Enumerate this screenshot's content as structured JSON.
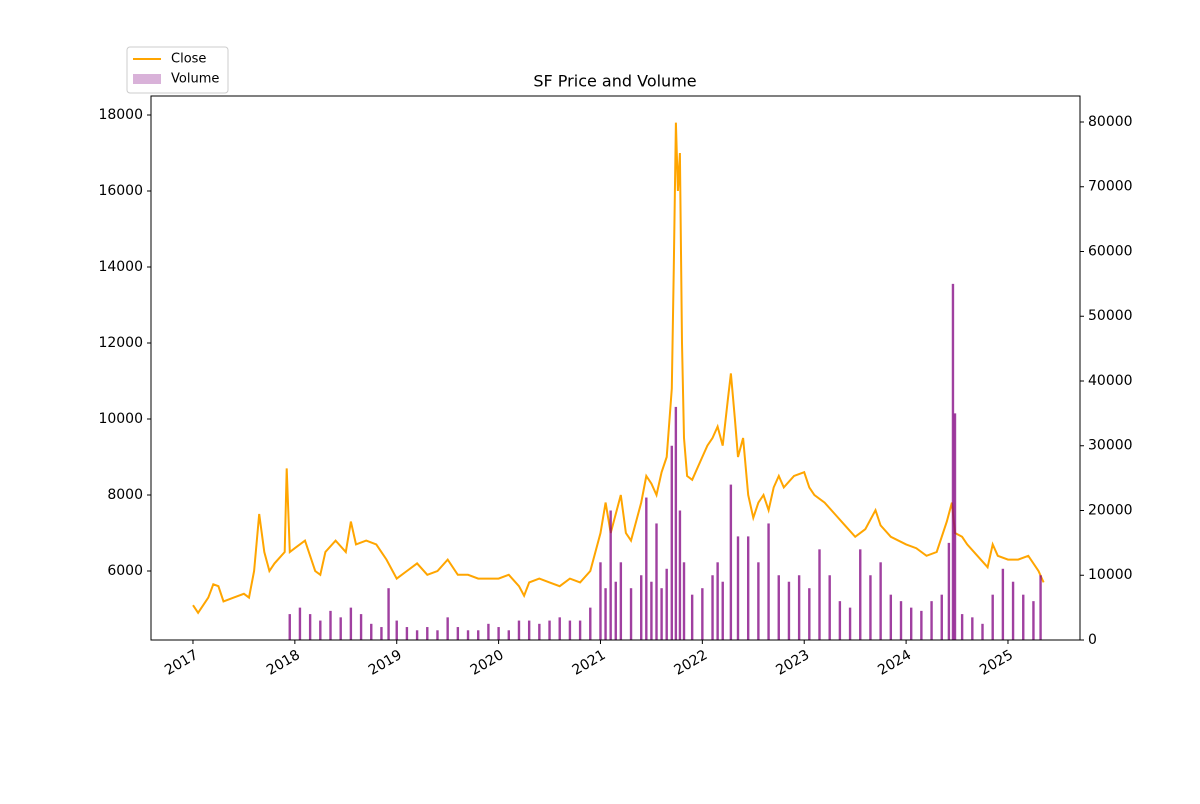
{
  "chart_data": {
    "type": "line",
    "title": "SF Price and Volume",
    "xlim": [
      2016.588,
      2025.707
    ],
    "xticks": [
      2017,
      2018,
      2019,
      2020,
      2021,
      2022,
      2023,
      2024,
      2025
    ],
    "ylim": [
      4184,
      18500
    ],
    "yticks": [
      6000,
      8000,
      10000,
      12000,
      14000,
      16000,
      18000
    ],
    "y2lim": [
      0,
      84015
    ],
    "y2ticks": [
      0,
      10000,
      20000,
      30000,
      40000,
      50000,
      60000,
      70000,
      80000
    ],
    "legend": "upper left",
    "series": [
      {
        "name": "Close",
        "color": "#ffa500",
        "x": [
          2017.0,
          2017.05,
          2017.15,
          2017.2,
          2017.25,
          2017.3,
          2017.4,
          2017.5,
          2017.55,
          2017.6,
          2017.65,
          2017.7,
          2017.75,
          2017.8,
          2017.9,
          2017.92,
          2017.95,
          2018.0,
          2018.1,
          2018.2,
          2018.25,
          2018.3,
          2018.4,
          2018.5,
          2018.55,
          2018.6,
          2018.7,
          2018.8,
          2018.9,
          2019.0,
          2019.1,
          2019.2,
          2019.3,
          2019.4,
          2019.5,
          2019.6,
          2019.7,
          2019.8,
          2019.9,
          2020.0,
          2020.1,
          2020.2,
          2020.25,
          2020.3,
          2020.4,
          2020.5,
          2020.6,
          2020.7,
          2020.8,
          2020.9,
          2021.0,
          2021.05,
          2021.1,
          2021.2,
          2021.25,
          2021.3,
          2021.4,
          2021.45,
          2021.5,
          2021.55,
          2021.6,
          2021.65,
          2021.7,
          2021.72,
          2021.74,
          2021.76,
          2021.78,
          2021.8,
          2021.82,
          2021.85,
          2021.9,
          2022.0,
          2022.05,
          2022.1,
          2022.15,
          2022.2,
          2022.25,
          2022.28,
          2022.32,
          2022.35,
          2022.4,
          2022.45,
          2022.5,
          2022.55,
          2022.6,
          2022.65,
          2022.7,
          2022.75,
          2022.8,
          2022.9,
          2023.0,
          2023.05,
          2023.1,
          2023.2,
          2023.3,
          2023.4,
          2023.5,
          2023.6,
          2023.7,
          2023.75,
          2023.85,
          2024.0,
          2024.1,
          2024.2,
          2024.3,
          2024.4,
          2024.45,
          2024.48,
          2024.55,
          2024.6,
          2024.7,
          2024.8,
          2024.85,
          2024.9,
          2025.0,
          2025.1,
          2025.2,
          2025.3,
          2025.35
        ],
        "values": [
          5100,
          4900,
          5300,
          5650,
          5600,
          5200,
          5300,
          5400,
          5300,
          6000,
          7500,
          6500,
          6000,
          6200,
          6500,
          8700,
          6500,
          6600,
          6800,
          6000,
          5900,
          6500,
          6800,
          6500,
          7300,
          6700,
          6800,
          6700,
          6300,
          5800,
          6000,
          6200,
          5900,
          6000,
          6300,
          5900,
          5900,
          5800,
          5800,
          5800,
          5900,
          5600,
          5350,
          5700,
          5800,
          5700,
          5600,
          5800,
          5700,
          6000,
          7000,
          7800,
          7000,
          8000,
          7000,
          6800,
          7800,
          8500,
          8300,
          8000,
          8600,
          9000,
          10800,
          14000,
          17800,
          16000,
          17000,
          12000,
          9500,
          8500,
          8400,
          9000,
          9300,
          9500,
          9800,
          9300,
          10500,
          11200,
          10000,
          9000,
          9500,
          8000,
          7400,
          7800,
          8000,
          7600,
          8200,
          8500,
          8200,
          8500,
          8600,
          8200,
          8000,
          7800,
          7500,
          7200,
          6900,
          7100,
          7600,
          7200,
          6900,
          6700,
          6600,
          6400,
          6500,
          7300,
          7800,
          7000,
          6900,
          6700,
          6400,
          6100,
          6700,
          6400,
          6300,
          6300,
          6400,
          6000,
          5700
        ]
      },
      {
        "name": "Volume",
        "color": "#800080",
        "axis": "y2",
        "type": "bar",
        "x": [
          2017.95,
          2018.05,
          2018.15,
          2018.25,
          2018.35,
          2018.45,
          2018.55,
          2018.65,
          2018.75,
          2018.85,
          2018.92,
          2019.0,
          2019.1,
          2019.2,
          2019.3,
          2019.4,
          2019.5,
          2019.6,
          2019.7,
          2019.8,
          2019.9,
          2020.0,
          2020.1,
          2020.2,
          2020.3,
          2020.4,
          2020.5,
          2020.6,
          2020.7,
          2020.8,
          2020.9,
          2021.0,
          2021.05,
          2021.1,
          2021.15,
          2021.2,
          2021.3,
          2021.4,
          2021.45,
          2021.5,
          2021.55,
          2021.6,
          2021.65,
          2021.7,
          2021.74,
          2021.78,
          2021.82,
          2021.9,
          2022.0,
          2022.1,
          2022.15,
          2022.2,
          2022.28,
          2022.35,
          2022.45,
          2022.55,
          2022.65,
          2022.75,
          2022.85,
          2022.95,
          2023.05,
          2023.15,
          2023.25,
          2023.35,
          2023.45,
          2023.55,
          2023.65,
          2023.75,
          2023.85,
          2023.95,
          2024.05,
          2024.15,
          2024.25,
          2024.35,
          2024.42,
          2024.46,
          2024.48,
          2024.55,
          2024.65,
          2024.75,
          2024.85,
          2024.95,
          2025.05,
          2025.15,
          2025.25,
          2025.32
        ],
        "values": [
          4000,
          5000,
          4000,
          3000,
          4500,
          3500,
          5000,
          4000,
          2500,
          2000,
          8000,
          3000,
          2000,
          1500,
          2000,
          1500,
          3500,
          2000,
          1500,
          1500,
          2500,
          2000,
          1500,
          3000,
          3000,
          2500,
          3000,
          3500,
          3000,
          3000,
          5000,
          12000,
          8000,
          20000,
          9000,
          12000,
          8000,
          10000,
          22000,
          9000,
          18000,
          8000,
          11000,
          30000,
          36000,
          20000,
          12000,
          7000,
          8000,
          10000,
          12000,
          9000,
          24000,
          16000,
          16000,
          12000,
          18000,
          10000,
          9000,
          10000,
          8000,
          14000,
          10000,
          6000,
          5000,
          14000,
          10000,
          12000,
          7000,
          6000,
          5000,
          4500,
          6000,
          7000,
          15000,
          55000,
          35000,
          4000,
          3500,
          2500,
          7000,
          11000,
          9000,
          7000,
          6000,
          10000
        ]
      }
    ]
  }
}
